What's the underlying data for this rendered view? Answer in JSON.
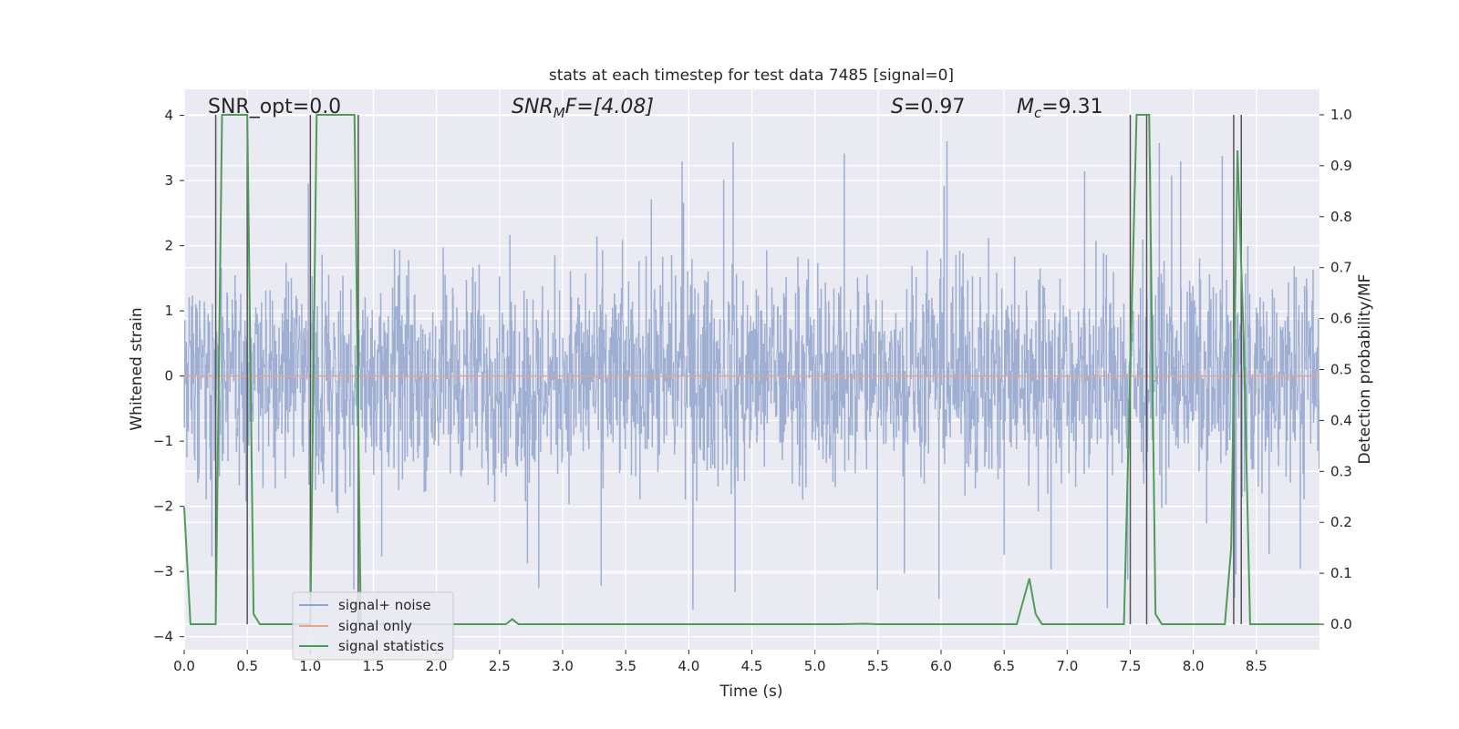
{
  "chart_data": {
    "type": "line",
    "title": "stats at each timestep for test data 7485 [signal=0]",
    "xlabel": "Time (s)",
    "ylabel_left": "Whitened strain",
    "ylabel_right": "Detection probability/MF",
    "xlim": [
      0.0,
      9.0
    ],
    "ylim_left": [
      -4.2,
      4.4
    ],
    "ylim_right": [
      -0.05,
      1.05
    ],
    "x_ticks": [
      "0.0",
      "0.5",
      "1.0",
      "1.5",
      "2.0",
      "2.5",
      "3.0",
      "3.5",
      "4.0",
      "4.5",
      "5.0",
      "5.5",
      "6.0",
      "6.5",
      "7.0",
      "7.5",
      "8.0",
      "8.5"
    ],
    "y_ticks_left": [
      "−4",
      "−3",
      "−2",
      "−1",
      "0",
      "1",
      "2",
      "3",
      "4"
    ],
    "y_ticks_right": [
      "0.0",
      "0.1",
      "0.2",
      "0.3",
      "0.4",
      "0.5",
      "0.6",
      "0.7",
      "0.8",
      "0.9",
      "1.0"
    ],
    "annotations": {
      "snr_opt": "SNR_opt=0.0",
      "snr_mf_base": "SNR",
      "snr_mf_sub": "M",
      "snr_mf_rest": "F=[4.08]",
      "s_sym": "S",
      "s_rest": "=0.97",
      "mc_sym": "M",
      "mc_sub": "c",
      "mc_rest": "=9.31"
    },
    "legend": [
      "signal+ noise",
      "signal only",
      "signal statistics"
    ],
    "legend_position": "lower-left",
    "series": [
      {
        "name": "signal+ noise",
        "axis": "left",
        "color": "#8fa3cc",
        "amplitude_envelope": [
          -3.0,
          3.3
        ],
        "description_values_max": 4.1,
        "description_values_min": -3.7
      },
      {
        "name": "signal only",
        "axis": "left",
        "color": "#e8a48a",
        "constant_value": 0.0
      },
      {
        "name": "signal statistics",
        "axis": "right",
        "color": "#4e9c5a",
        "x": [
          0.0,
          0.05,
          0.1,
          0.2,
          0.25,
          0.3,
          0.35,
          0.45,
          0.5,
          0.55,
          0.6,
          0.65,
          0.7,
          0.95,
          1.0,
          1.05,
          1.1,
          1.25,
          1.35,
          1.4,
          1.45,
          2.55,
          2.6,
          2.65,
          2.7,
          5.2,
          5.4,
          5.5,
          6.6,
          6.7,
          6.75,
          6.8,
          7.45,
          7.55,
          7.6,
          7.65,
          7.7,
          7.75,
          8.25,
          8.3,
          8.35,
          8.4,
          8.45,
          8.5,
          8.55,
          9.0
        ],
        "y": [
          0.23,
          0.0,
          0.0,
          0.0,
          0.0,
          1.0,
          1.0,
          1.0,
          1.0,
          0.02,
          0.0,
          0.0,
          0.0,
          0.0,
          0.0,
          1.0,
          1.0,
          1.0,
          1.0,
          0.0,
          0.0,
          0.0,
          0.01,
          0.0,
          0.0,
          0.0,
          0.001,
          0.0,
          0.0,
          0.09,
          0.02,
          0.0,
          0.0,
          1.0,
          1.0,
          1.0,
          0.02,
          0.0,
          0.0,
          0.15,
          0.93,
          0.55,
          0.0,
          0.0,
          0.0,
          0.0
        ]
      }
    ],
    "vertical_markers_x": [
      0.25,
      0.5,
      1.0,
      1.38,
      7.5,
      7.63,
      8.32,
      8.38
    ],
    "vertical_marker_range_right": [
      0.0,
      1.0
    ]
  }
}
